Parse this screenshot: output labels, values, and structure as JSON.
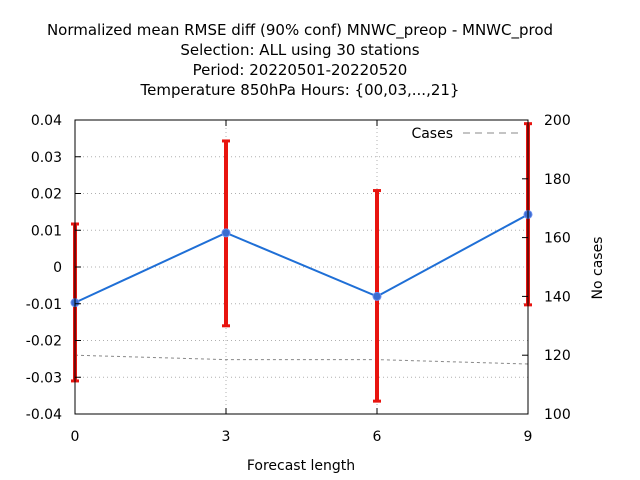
{
  "chart_data": {
    "type": "line",
    "title_lines": [
      "Normalized mean RMSE diff (90% conf) MNWC_preop - MNWC_prod",
      "Selection: ALL using    30 stations",
      "Period: 20220501-20220520",
      "Temperature 850hPa   Hours: {00,03,...,21}"
    ],
    "xlabel": "Forecast length",
    "ylabel": "",
    "y2label": "No cases",
    "x": [
      0,
      3,
      6,
      9
    ],
    "x_tick_labels": [
      "0",
      "3",
      "6",
      "9"
    ],
    "xlim": [
      0,
      9
    ],
    "ylim": [
      -0.04,
      0.04
    ],
    "y_tick_labels": [
      "-0.04",
      "-0.03",
      "-0.02",
      "-0.01",
      "0",
      "0.01",
      "0.02",
      "0.03",
      "0.04"
    ],
    "y2lim": [
      100,
      200
    ],
    "y2_tick_labels": [
      "100",
      "120",
      "140",
      "160",
      "180",
      "200"
    ],
    "grid": true,
    "legend_position": "top-right",
    "series": [
      {
        "values": [
          -0.0097,
          0.0093,
          -0.008,
          0.0143
        ],
        "error_low": [
          -0.031,
          -0.016,
          -0.0365,
          -0.0103
        ],
        "error_high": [
          0.0117,
          0.0343,
          0.0208,
          0.039
        ],
        "color": "#1f6fd6",
        "marker_color": "#3a6cd0",
        "errorbar_color": "#e8140f",
        "axis": "left"
      },
      {
        "name": "Cases",
        "x": [
          0,
          1,
          2,
          3,
          4,
          5,
          6,
          7,
          8,
          9
        ],
        "values": [
          120,
          119.5,
          119,
          118.5,
          118.5,
          118.5,
          118.5,
          118,
          117.5,
          117
        ],
        "color": "#888888",
        "style": "dashed",
        "axis": "right"
      }
    ]
  }
}
